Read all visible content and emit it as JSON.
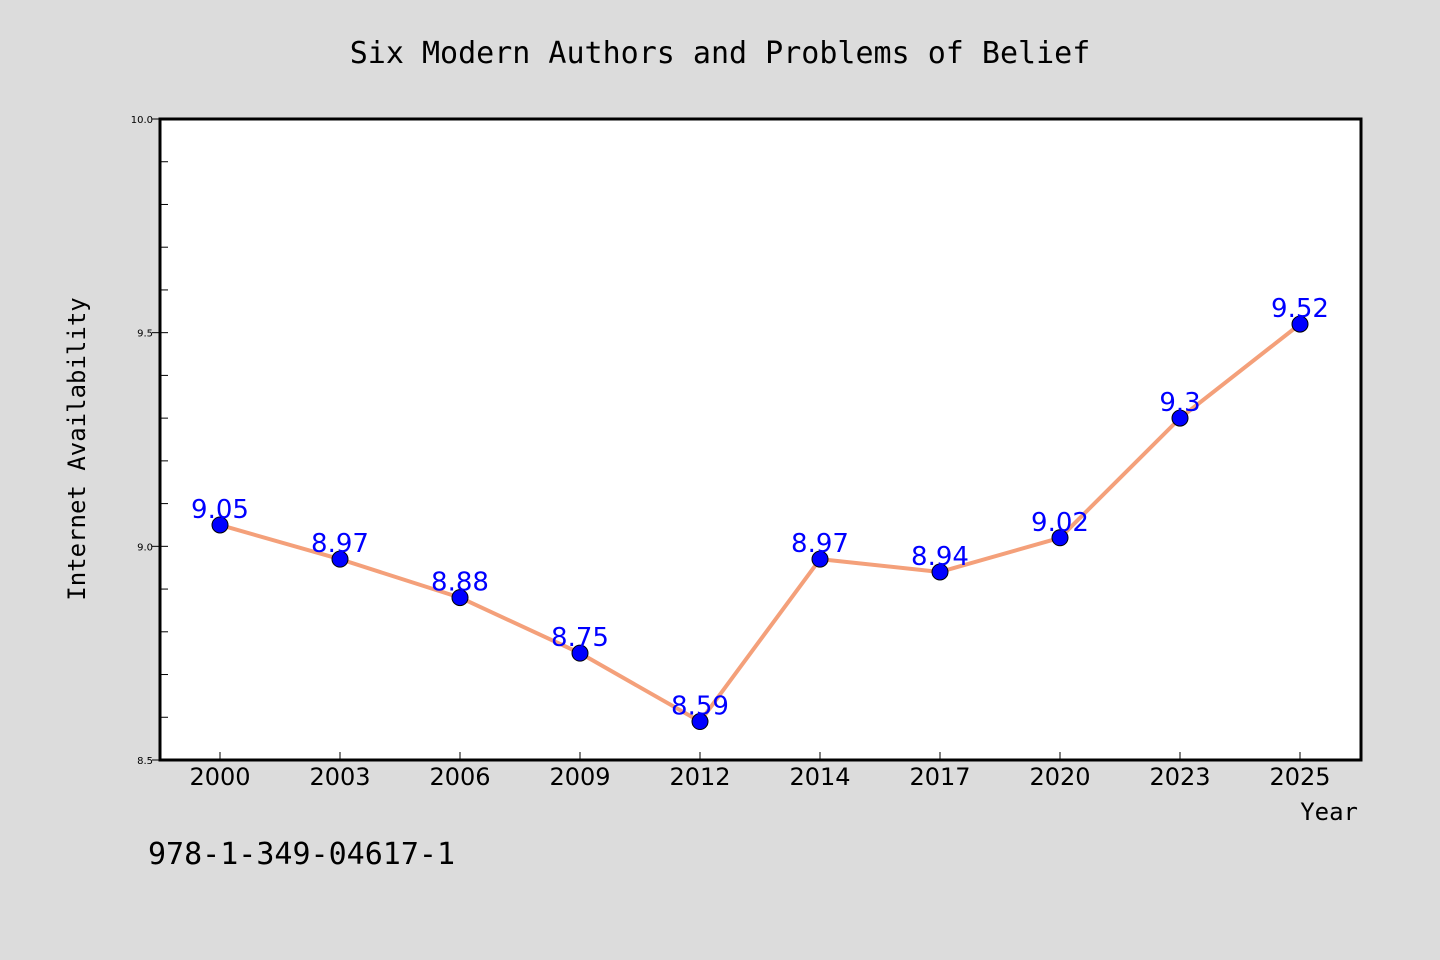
{
  "chart_data": {
    "type": "line",
    "title": "Six Modern Authors and Problems of Belief",
    "xlabel": "Year",
    "ylabel": "Internet Availability",
    "categories": [
      "2000",
      "2003",
      "2006",
      "2009",
      "2012",
      "2014",
      "2017",
      "2020",
      "2023",
      "2025"
    ],
    "values": [
      9.05,
      8.97,
      8.88,
      8.75,
      8.59,
      8.97,
      8.94,
      9.02,
      9.3,
      9.52
    ],
    "data_labels": [
      "9.05",
      "8.97",
      "8.88",
      "8.75",
      "8.59",
      "8.97",
      "8.94",
      "9.02",
      "9.3",
      "9.52"
    ],
    "ylim": [
      8.5,
      10.0
    ],
    "yticks": [
      "8.5",
      "9.0",
      "9.5",
      "10.0"
    ],
    "grid": false,
    "line_color": "#f4a07a",
    "marker_color": "#0000ff",
    "label_color": "#0000ff",
    "background_color": "#dcdcdc"
  },
  "footer": {
    "isbn": "978-1-349-04617-1"
  }
}
